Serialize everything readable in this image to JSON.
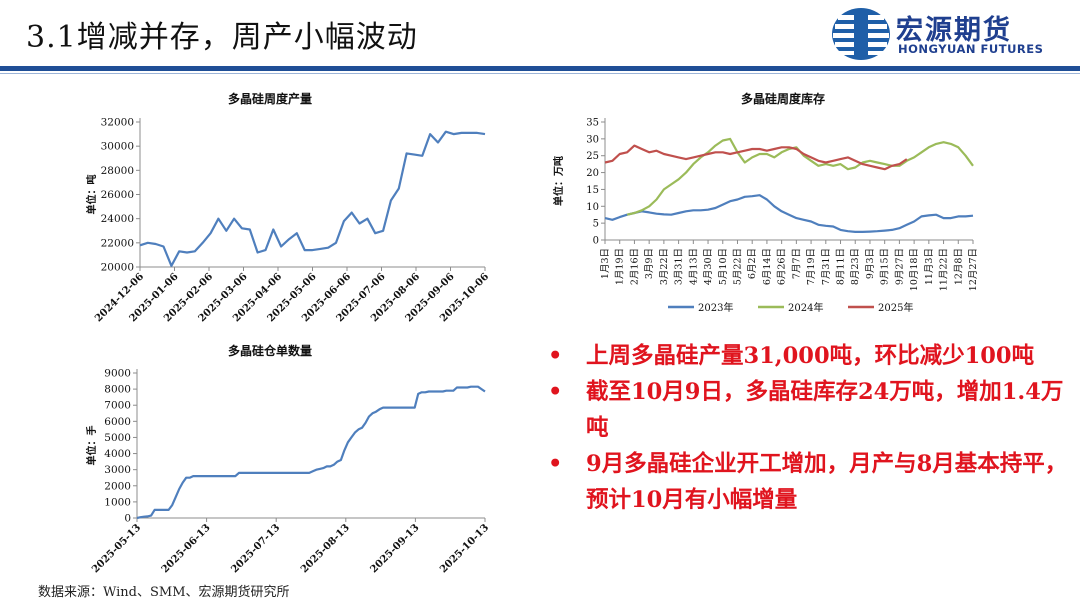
{
  "slide": {
    "title": "3.1增减并存，周产小幅波动",
    "logo_cn": "宏源期货",
    "logo_en": "HONGYUAN FUTURES",
    "source": "数据来源：Wind、SMM、宏源期货研究所"
  },
  "bullets": [
    {
      "marker": "•",
      "text": "上周多晶硅产量31,000吨，环比减少100吨"
    },
    {
      "marker": "•",
      "text": "截至10月9日，多晶硅库存24万吨，增加1.4万吨"
    },
    {
      "marker": "•",
      "text": "9月多晶硅企业开工增加，月产与8月基本持平，预计10月有小幅增量"
    }
  ],
  "colors": {
    "brand": "#1f4e96",
    "accent_red": "#e0141e",
    "series_blue": "#4f7fbd",
    "series_green": "#9bbb59",
    "series_red": "#c0504d"
  },
  "chart_data": [
    {
      "id": "production",
      "type": "line",
      "title": "多晶硅周度产量",
      "ylabel": "单位：吨",
      "ylim": [
        20000,
        32000
      ],
      "yticks": [
        20000,
        22000,
        24000,
        26000,
        28000,
        30000,
        32000
      ],
      "xticks": [
        "2024-12-06",
        "2025-01-06",
        "2025-02-06",
        "2025-03-06",
        "2025-04-06",
        "2025-05-06",
        "2025-06-06",
        "2025-07-06",
        "2025-08-06",
        "2025-09-06",
        "2025-10-06"
      ],
      "x_index_range": [
        0,
        44
      ],
      "series": [
        {
          "color": "#4f7fbd",
          "values": [
            21800,
            22000,
            21900,
            21700,
            20100,
            21300,
            21200,
            21300,
            22000,
            22800,
            24000,
            23000,
            24000,
            23200,
            23100,
            21200,
            21400,
            23100,
            21700,
            22300,
            22800,
            21400,
            21400,
            21500,
            21600,
            22000,
            23800,
            24500,
            23600,
            24000,
            22800,
            23000,
            25500,
            26500,
            29400,
            29300,
            29200,
            31000,
            30300,
            31200,
            31000,
            31100,
            31100,
            31100,
            31000
          ]
        }
      ]
    },
    {
      "id": "inventory",
      "type": "line",
      "title": "多晶硅周度库存",
      "ylabel": "单位：万吨",
      "ylim": [
        0,
        35
      ],
      "yticks": [
        0,
        5,
        10,
        15,
        20,
        25,
        30,
        35
      ],
      "xticks": [
        "1月3日",
        "1月19日",
        "2月16日",
        "3月9日",
        "3月22日",
        "3月31日",
        "4月13日",
        "4月30日",
        "5月10日",
        "5月22日",
        "6月2日",
        "6月14日",
        "6月26日",
        "7月7日",
        "7月19日",
        "7月31日",
        "8月11日",
        "8月23日",
        "9月3日",
        "9月15日",
        "9月27日",
        "10月18日",
        "11月3日",
        "11月22日",
        "12月8日",
        "12月27日"
      ],
      "x_index_range": [
        0,
        50
      ],
      "legend": [
        "2023年",
        "2024年",
        "2025年"
      ],
      "legend_position": "bottom",
      "series": [
        {
          "name": "2023年",
          "color": "#4f7fbd",
          "values": [
            6.5,
            6.0,
            6.8,
            7.5,
            8.0,
            8.5,
            8.2,
            7.8,
            7.6,
            7.5,
            8.0,
            8.5,
            8.8,
            8.8,
            9.0,
            9.5,
            10.5,
            11.5,
            12.0,
            12.8,
            13.0,
            13.3,
            12.0,
            10.0,
            8.5,
            7.5,
            6.5,
            6.0,
            5.5,
            4.5,
            4.2,
            4.0,
            3.0,
            2.6,
            2.4,
            2.4,
            2.5,
            2.6,
            2.8,
            3.0,
            3.5,
            4.5,
            5.5,
            7.0,
            7.3,
            7.5,
            6.5,
            6.5,
            7.0,
            7.0,
            7.2
          ]
        },
        {
          "name": "2024年",
          "color": "#9bbb59",
          "values": [
            null,
            null,
            null,
            7.5,
            8.0,
            8.8,
            10.0,
            12.0,
            15.0,
            16.5,
            18.0,
            20.0,
            22.5,
            24.5,
            26.0,
            28.0,
            29.5,
            30.0,
            26.0,
            23.0,
            24.5,
            25.5,
            25.5,
            24.5,
            26.0,
            27.0,
            27.5,
            25.0,
            23.5,
            22.0,
            22.5,
            22.0,
            22.5,
            21.0,
            21.5,
            23.0,
            23.5,
            23.0,
            22.5,
            22.0,
            22.0,
            23.5,
            24.5,
            26.0,
            27.5,
            28.5,
            29.0,
            28.5,
            27.5,
            25.0,
            22.0
          ]
        },
        {
          "name": "2025年",
          "color": "#c0504d",
          "values": [
            23.0,
            23.5,
            25.5,
            26.0,
            28.0,
            27.0,
            26.0,
            26.5,
            25.5,
            25.0,
            24.5,
            24.0,
            24.5,
            25.0,
            25.5,
            26.0,
            26.0,
            25.5,
            26.0,
            26.5,
            27.0,
            27.0,
            26.5,
            27.0,
            27.5,
            27.5,
            27.0,
            25.5,
            24.5,
            23.5,
            23.0,
            23.5,
            24.0,
            24.5,
            23.5,
            22.5,
            22.0,
            21.5,
            21.0,
            22.0,
            22.5,
            24.0
          ]
        }
      ]
    },
    {
      "id": "warehouse",
      "type": "line",
      "title": "多晶硅仓单数量",
      "ylabel": "单位：手",
      "ylim": [
        0,
        9000
      ],
      "yticks": [
        0,
        1000,
        2000,
        3000,
        4000,
        5000,
        6000,
        7000,
        8000,
        9000
      ],
      "xticks": [
        "2025-05-13",
        "2025-06-13",
        "2025-07-13",
        "2025-08-13",
        "2025-09-13",
        "2025-10-13"
      ],
      "x_index_range": [
        0,
        99
      ],
      "series": [
        {
          "color": "#4f7fbd",
          "values": [
            0,
            50,
            80,
            100,
            150,
            500,
            500,
            500,
            500,
            500,
            800,
            1300,
            1800,
            2200,
            2500,
            2500,
            2600,
            2600,
            2600,
            2600,
            2600,
            2600,
            2600,
            2600,
            2600,
            2600,
            2600,
            2600,
            2600,
            2800,
            2800,
            2800,
            2800,
            2800,
            2800,
            2800,
            2800,
            2800,
            2800,
            2800,
            2800,
            2800,
            2800,
            2800,
            2800,
            2800,
            2800,
            2800,
            2800,
            2800,
            2900,
            3000,
            3050,
            3100,
            3200,
            3200,
            3300,
            3500,
            3600,
            4200,
            4700,
            5000,
            5300,
            5500,
            5600,
            5900,
            6300,
            6500,
            6600,
            6750,
            6850,
            6850,
            6850,
            6850,
            6850,
            6850,
            6850,
            6850,
            6850,
            6850,
            7700,
            7800,
            7800,
            7850,
            7850,
            7850,
            7850,
            7850,
            7900,
            7900,
            7900,
            8100,
            8100,
            8100,
            8100,
            8150,
            8150,
            8150,
            8000,
            7850
          ]
        }
      ]
    }
  ]
}
